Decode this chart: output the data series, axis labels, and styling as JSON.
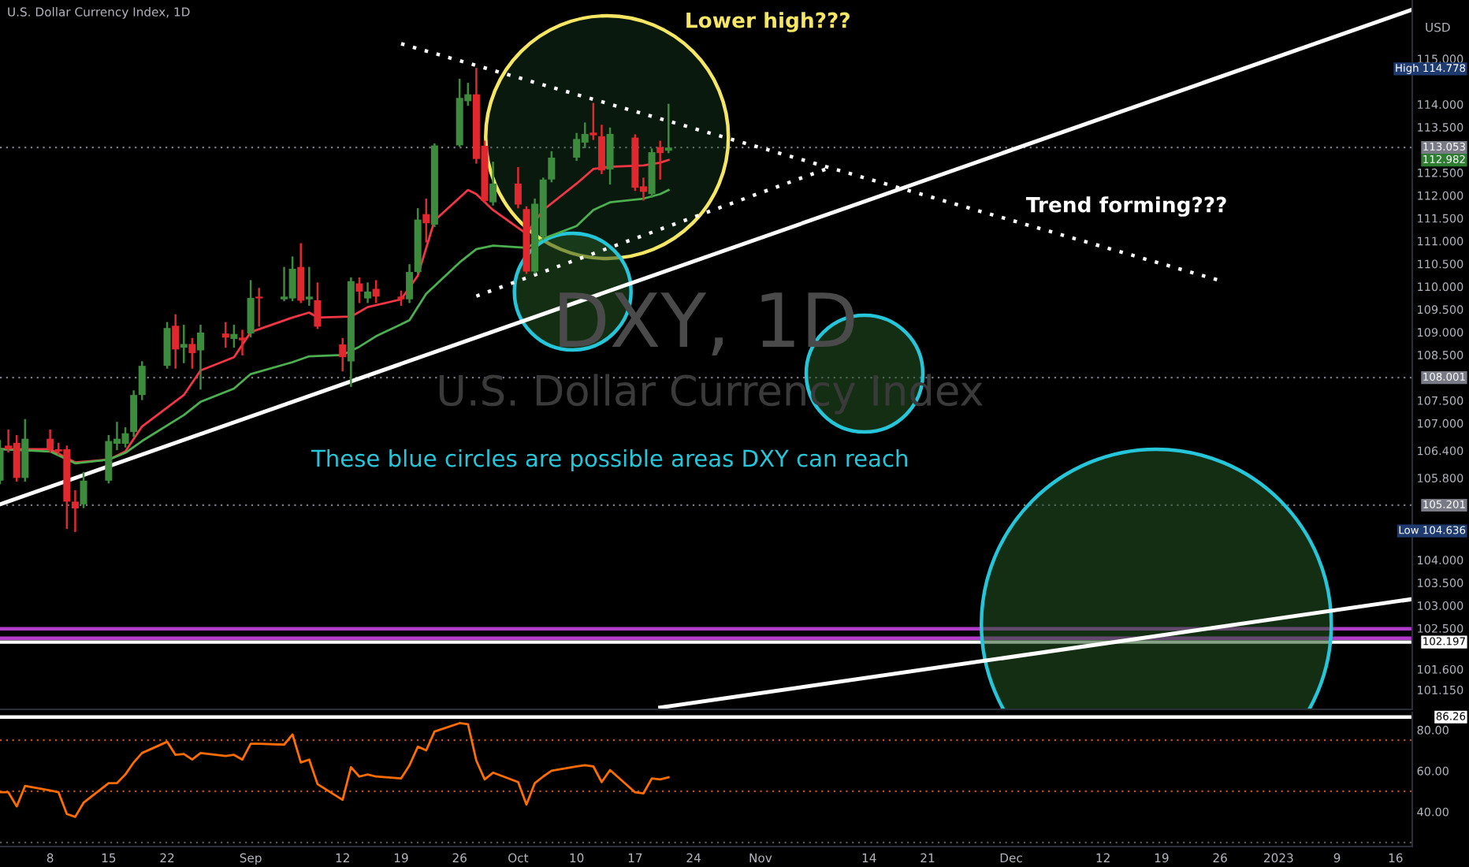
{
  "chart_data": [
    {
      "type": "candlestick",
      "title": "U.S. Dollar Currency Index, 1D",
      "ylabel": "USD",
      "x": [
        "2022-08-02",
        "2022-08-03",
        "2022-08-04",
        "2022-08-05",
        "2022-08-08",
        "2022-08-09",
        "2022-08-10",
        "2022-08-11",
        "2022-08-12",
        "2022-08-15",
        "2022-08-16",
        "2022-08-17",
        "2022-08-18",
        "2022-08-19",
        "2022-08-22",
        "2022-08-23",
        "2022-08-24",
        "2022-08-25",
        "2022-08-26",
        "2022-08-29",
        "2022-08-30",
        "2022-08-31",
        "2022-09-01",
        "2022-09-02",
        "2022-09-05",
        "2022-09-06",
        "2022-09-07",
        "2022-09-08",
        "2022-09-09",
        "2022-09-12",
        "2022-09-13",
        "2022-09-14",
        "2022-09-15",
        "2022-09-16",
        "2022-09-19",
        "2022-09-20",
        "2022-09-21",
        "2022-09-22",
        "2022-09-23",
        "2022-09-26",
        "2022-09-27",
        "2022-09-28",
        "2022-09-29",
        "2022-09-30",
        "2022-10-03",
        "2022-10-04",
        "2022-10-05",
        "2022-10-06",
        "2022-10-07",
        "2022-10-10",
        "2022-10-11",
        "2022-10-12",
        "2022-10-13",
        "2022-10-14",
        "2022-10-17",
        "2022-10-18",
        "2022-10-19",
        "2022-10-20",
        "2022-10-21"
      ],
      "ohlc": [
        [
          105.74,
          106.61,
          105.68,
          106.43
        ],
        [
          106.51,
          106.84,
          106.38,
          106.43
        ],
        [
          106.57,
          106.72,
          105.74,
          105.8
        ],
        [
          105.8,
          107.07,
          105.74,
          106.66
        ],
        [
          106.66,
          106.84,
          106.38,
          106.43
        ],
        [
          106.43,
          106.55,
          106.32,
          106.38
        ],
        [
          106.43,
          106.49,
          104.7,
          105.28
        ],
        [
          105.28,
          105.51,
          104.636,
          105.13
        ],
        [
          105.22,
          105.91,
          105.16,
          105.74
        ],
        [
          105.74,
          106.72,
          105.7,
          106.61
        ],
        [
          106.55,
          107.01,
          106.43,
          106.66
        ],
        [
          106.55,
          106.89,
          106.49,
          106.78
        ],
        [
          106.81,
          107.7,
          106.72,
          107.62
        ],
        [
          107.62,
          108.34,
          107.53,
          108.26
        ],
        [
          108.26,
          109.2,
          108.22,
          109.09
        ],
        [
          109.14,
          109.37,
          108.22,
          108.62
        ],
        [
          108.66,
          109.14,
          108.34,
          108.74
        ],
        [
          108.74,
          108.85,
          108.22,
          108.54
        ],
        [
          108.6,
          109.14,
          107.76,
          108.99
        ],
        [
          108.97,
          109.2,
          108.68,
          108.88
        ],
        [
          108.85,
          109.14,
          108.68,
          108.96
        ],
        [
          108.88,
          109.03,
          108.51,
          108.82
        ],
        [
          108.97,
          110.12,
          108.91,
          109.75
        ],
        [
          109.78,
          109.95,
          109.14,
          109.74
        ],
        [
          109.72,
          110.41,
          109.7,
          109.78
        ],
        [
          109.74,
          110.64,
          109.7,
          110.39
        ],
        [
          110.43,
          110.93,
          109.66,
          109.69
        ],
        [
          109.72,
          110.41,
          109.6,
          109.78
        ],
        [
          109.7,
          110.07,
          109.09,
          109.12
        ],
        [
          108.73,
          108.85,
          108.16,
          108.45
        ],
        [
          108.36,
          110.18,
          107.82,
          110.12
        ],
        [
          110.07,
          110.18,
          109.66,
          109.89
        ],
        [
          109.74,
          110.07,
          109.66,
          109.89
        ],
        [
          109.95,
          110.12,
          109.66,
          109.78
        ],
        [
          109.78,
          109.89,
          109.6,
          109.72
        ],
        [
          109.72,
          110.47,
          109.66,
          110.32
        ],
        [
          110.32,
          111.7,
          110.3,
          111.47
        ],
        [
          111.59,
          111.91,
          110.99,
          111.39
        ],
        [
          111.36,
          113.12,
          111.33,
          113.1
        ],
        [
          113.1,
          114.54,
          113.09,
          114.14
        ],
        [
          114.07,
          114.45,
          113.99,
          114.22
        ],
        [
          114.22,
          114.778,
          112.72,
          112.8
        ],
        [
          113.09,
          113.18,
          111.85,
          111.88
        ],
        [
          111.85,
          112.72,
          111.8,
          112.26
        ],
        [
          112.26,
          112.6,
          111.74,
          111.8
        ],
        [
          111.7,
          111.74,
          110.3,
          110.33
        ],
        [
          110.33,
          111.91,
          110.3,
          111.82
        ],
        [
          111.1,
          112.37,
          111.05,
          112.35
        ],
        [
          112.35,
          112.95,
          112.31,
          112.83
        ],
        [
          112.83,
          113.35,
          112.78,
          113.24
        ],
        [
          113.16,
          113.58,
          113.06,
          113.35
        ],
        [
          113.38,
          114.01,
          113.24,
          113.32
        ],
        [
          113.3,
          113.53,
          112.49,
          112.55
        ],
        [
          112.57,
          113.47,
          112.26,
          113.35
        ],
        [
          113.27,
          113.32,
          112.12,
          112.17
        ],
        [
          112.2,
          112.37,
          111.91,
          112.08
        ],
        [
          112.03,
          113.01,
          111.97,
          112.95
        ],
        [
          113.06,
          113.18,
          112.37,
          112.93
        ],
        [
          112.982,
          113.99,
          112.95,
          113.053
        ]
      ],
      "series": [
        {
          "type": "line",
          "color": "#f23645",
          "line_style": "solid",
          "x": [
            "2022-08-02",
            "2022-08-08",
            "2022-08-11",
            "2022-08-15",
            "2022-08-17",
            "2022-08-19",
            "2022-08-24",
            "2022-08-26",
            "2022-08-30",
            "2022-09-01",
            "2022-09-06",
            "2022-09-08",
            "2022-09-09",
            "2022-09-13",
            "2022-09-15",
            "2022-09-19",
            "2022-09-21",
            "2022-09-23",
            "2022-09-27",
            "2022-09-28",
            "2022-09-30",
            "2022-10-04",
            "2022-10-06",
            "2022-10-10",
            "2022-10-12",
            "2022-10-14",
            "2022-10-18",
            "2022-10-20",
            "2022-10-21"
          ],
          "values": [
            106.43,
            106.43,
            106.14,
            106.2,
            106.38,
            106.93,
            107.62,
            108.16,
            108.45,
            109.0,
            109.32,
            109.43,
            109.32,
            109.34,
            109.55,
            109.72,
            110.24,
            111.45,
            112.12,
            112.03,
            111.68,
            111.16,
            111.68,
            112.26,
            112.58,
            112.63,
            112.66,
            112.72,
            112.78
          ]
        },
        {
          "type": "line",
          "color": "#4caf50",
          "line_style": "solid",
          "x": [
            "2022-08-02",
            "2022-08-08",
            "2022-08-11",
            "2022-08-15",
            "2022-08-17",
            "2022-08-19",
            "2022-08-24",
            "2022-08-26",
            "2022-08-30",
            "2022-09-01",
            "2022-09-06",
            "2022-09-08",
            "2022-09-12",
            "2022-09-14",
            "2022-09-16",
            "2022-09-20",
            "2022-09-22",
            "2022-09-26",
            "2022-09-28",
            "2022-09-30",
            "2022-10-04",
            "2022-10-06",
            "2022-10-10",
            "2022-10-12",
            "2022-10-14",
            "2022-10-18",
            "2022-10-20",
            "2022-10-21"
          ],
          "values": [
            106.43,
            106.38,
            106.12,
            106.2,
            106.35,
            106.61,
            107.18,
            107.47,
            107.76,
            108.08,
            108.34,
            108.47,
            108.5,
            108.68,
            108.91,
            109.26,
            109.84,
            110.53,
            110.82,
            110.9,
            110.85,
            111.05,
            111.33,
            111.68,
            111.85,
            111.93,
            112.03,
            112.12
          ]
        },
        {
          "type": "line",
          "color": "#ffffff",
          "line_style": "solid",
          "x": [
            "2022-08-02",
            "2023-01-18"
          ],
          "values": [
            105.22,
            116.08
          ]
        },
        {
          "type": "line",
          "color": "#ffffff",
          "line_style": "dotted",
          "x": [
            "2022-09-19",
            "2022-12-26"
          ],
          "values": [
            115.33,
            110.13
          ]
        },
        {
          "type": "line",
          "color": "#ffffff",
          "line_style": "dotted",
          "x": [
            "2022-09-28",
            "2022-11-09"
          ],
          "values": [
            109.79,
            112.59
          ]
        },
        {
          "type": "line",
          "color": "#ffffff",
          "line_style": "solid",
          "x": [
            "2022-10-20",
            "2023-01-18"
          ],
          "values": [
            100.76,
            103.14
          ]
        }
      ],
      "xlim": [
        "2022-08-02",
        "2023-01-18"
      ],
      "ylim": [
        100.72,
        116.29
      ],
      "yticks": [
        {
          "value": 115,
          "label": "115.000"
        },
        {
          "value": 114,
          "label": "114.000"
        },
        {
          "value": 113.5,
          "label": "113.500"
        },
        {
          "value": 112.5,
          "label": "112.500"
        },
        {
          "value": 112,
          "label": "112.000"
        },
        {
          "value": 111.5,
          "label": "111.500"
        },
        {
          "value": 111,
          "label": "111.000"
        },
        {
          "value": 110.5,
          "label": "110.500"
        },
        {
          "value": 110,
          "label": "110.000"
        },
        {
          "value": 109.5,
          "label": "109.500"
        },
        {
          "value": 109,
          "label": "109.000"
        },
        {
          "value": 108.5,
          "label": "108.500"
        },
        {
          "value": 107.5,
          "label": "107.500"
        },
        {
          "value": 107,
          "label": "107.000"
        },
        {
          "value": 106.4,
          "label": "106.400"
        },
        {
          "value": 105.8,
          "label": "105.800"
        },
        {
          "value": 104,
          "label": "104.000"
        },
        {
          "value": 103.5,
          "label": "103.500"
        },
        {
          "value": 103,
          "label": "103.000"
        },
        {
          "value": 102.5,
          "label": "102.500"
        },
        {
          "value": 101.6,
          "label": "101.600"
        },
        {
          "value": 101.15,
          "label": "101.150"
        }
      ],
      "tick_labels": "y",
      "ref_lines": [
        {
          "axis": "y",
          "value": 113.053,
          "label": "113.053",
          "color": "#787b86",
          "line_style": "dotted"
        },
        {
          "axis": "y",
          "value": 108.001,
          "label": "108.001",
          "color": "#787b86",
          "line_style": "dotted"
        },
        {
          "axis": "y",
          "value": 105.201,
          "label": "105.201",
          "color": "#787b86",
          "line_style": "dotted"
        },
        {
          "axis": "y",
          "value": 102.49,
          "color": "#b03cc8",
          "line_style": "solid"
        },
        {
          "axis": "y",
          "value": 102.28,
          "color": "#b03cc8",
          "line_style": "solid"
        },
        {
          "axis": "y",
          "value": 102.197,
          "label": "102.197",
          "color": "#ffffff",
          "line_style": "solid"
        }
      ],
      "annotations": [
        "Lower high???",
        "Trend forming???",
        "These blue circles are possible areas DXY can reach",
        "DXY, 1D",
        "U.S. Dollar Currency Index",
        "High 114.778",
        "112.982",
        "Low 104.636"
      ]
    },
    {
      "type": "line",
      "x": [
        "2022-08-02",
        "2022-08-03",
        "2022-08-04",
        "2022-08-05",
        "2022-08-08",
        "2022-08-09",
        "2022-08-10",
        "2022-08-11",
        "2022-08-12",
        "2022-08-15",
        "2022-08-16",
        "2022-08-17",
        "2022-08-18",
        "2022-08-19",
        "2022-08-22",
        "2022-08-23",
        "2022-08-24",
        "2022-08-25",
        "2022-08-26",
        "2022-08-29",
        "2022-08-30",
        "2022-08-31",
        "2022-09-01",
        "2022-09-02",
        "2022-09-05",
        "2022-09-06",
        "2022-09-07",
        "2022-09-08",
        "2022-09-09",
        "2022-09-12",
        "2022-09-13",
        "2022-09-14",
        "2022-09-15",
        "2022-09-16",
        "2022-09-19",
        "2022-09-20",
        "2022-09-21",
        "2022-09-22",
        "2022-09-23",
        "2022-09-26",
        "2022-09-27",
        "2022-09-28",
        "2022-09-29",
        "2022-09-30",
        "2022-10-03",
        "2022-10-04",
        "2022-10-05",
        "2022-10-06",
        "2022-10-07",
        "2022-10-10",
        "2022-10-11",
        "2022-10-12",
        "2022-10-13",
        "2022-10-14",
        "2022-10-17",
        "2022-10-18",
        "2022-10-19",
        "2022-10-20",
        "2022-10-21"
      ],
      "series": [
        {
          "color": "#ff6d00",
          "values": [
            49.5,
            49.5,
            42.6,
            52.6,
            50.4,
            49.5,
            38.9,
            37.5,
            44.4,
            54.0,
            54.0,
            58.2,
            64.1,
            68.7,
            74.2,
            67.8,
            68.2,
            65.5,
            68.7,
            67.3,
            67.8,
            65.5,
            73.2,
            73.2,
            72.8,
            77.8,
            64.1,
            65.5,
            53.5,
            45.8,
            61.8,
            57.2,
            58.2,
            57.2,
            56.3,
            62.7,
            71.8,
            70.0,
            79.2,
            83.3,
            82.8,
            65.0,
            55.8,
            59.1,
            54.5,
            43.5,
            54.0,
            57.2,
            60.0,
            62.2,
            62.7,
            62.2,
            54.5,
            60.4,
            49.5,
            49.0,
            56.3,
            55.8,
            56.8
          ]
        }
      ],
      "xlim": [
        "2022-08-02",
        "2023-01-18"
      ],
      "xticks": [
        {
          "value": "2022-08-08",
          "label": "8"
        },
        {
          "value": "2022-08-15",
          "label": "15"
        },
        {
          "value": "2022-08-22",
          "label": "22"
        },
        {
          "value": "2022-09-01",
          "label": "Sep"
        },
        {
          "value": "2022-09-12",
          "label": "12"
        },
        {
          "value": "2022-09-19",
          "label": "19"
        },
        {
          "value": "2022-09-26",
          "label": "26"
        },
        {
          "value": "2022-10-03",
          "label": "Oct"
        },
        {
          "value": "2022-10-10",
          "label": "10"
        },
        {
          "value": "2022-10-17",
          "label": "17"
        },
        {
          "value": "2022-10-24",
          "label": "24"
        },
        {
          "value": "2022-11-01",
          "label": "Nov"
        },
        {
          "value": "2022-11-14",
          "label": "14"
        },
        {
          "value": "2022-11-21",
          "label": "21"
        },
        {
          "value": "2022-12-01",
          "label": "Dec"
        },
        {
          "value": "2022-12-12",
          "label": "12"
        },
        {
          "value": "2022-12-19",
          "label": "19"
        },
        {
          "value": "2022-12-26",
          "label": "26"
        },
        {
          "value": "2023-01-02",
          "label": "2023"
        },
        {
          "value": "2023-01-09",
          "label": "9"
        },
        {
          "value": "2023-01-16",
          "label": "16"
        }
      ],
      "ylim": [
        23,
        88.5
      ],
      "yticks": [
        {
          "value": 80,
          "label": "80.00"
        },
        {
          "value": 60,
          "label": "60.00"
        },
        {
          "value": 40,
          "label": "40.00"
        }
      ],
      "ref_lines": [
        {
          "axis": "y",
          "value": 86.26,
          "label": "86.26",
          "color": "#ffffff",
          "line_style": "solid"
        },
        {
          "axis": "y",
          "value": 75,
          "color": "#c0501a",
          "line_style": "dotted"
        },
        {
          "axis": "y",
          "value": 50,
          "color": "#c0501a",
          "line_style": "dotted"
        },
        {
          "axis": "y",
          "value": 25,
          "color": "#555555",
          "line_style": "dotted"
        }
      ]
    }
  ]
}
